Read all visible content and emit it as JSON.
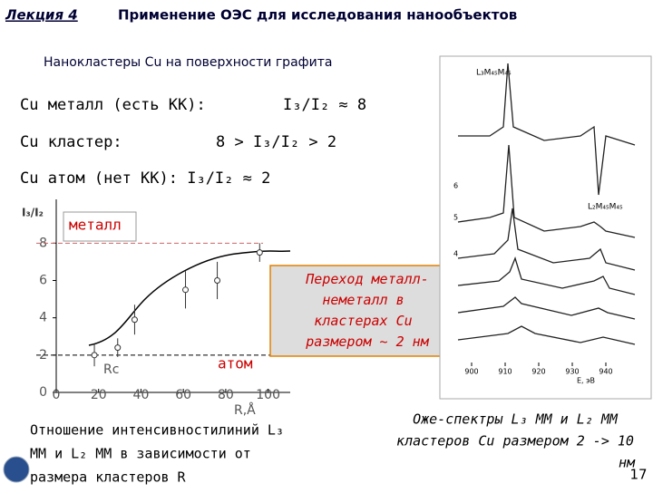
{
  "header": {
    "lecture": "Лекция 4",
    "title": "Применение ОЭС для исследования нанообъектов"
  },
  "subtitle": "Нанокластеры Cu на поверхности графита",
  "rows": [
    {
      "label": "Cu металл (есть КК):",
      "value": "I₃/I₂ ≈ 8"
    },
    {
      "label": "Cu кластер:",
      "value": "8 > I₃/I₂ > 2"
    },
    {
      "label": "Cu атом (нет КК): I₃/I₂ ≈ 2"
    }
  ],
  "plot": {
    "y_label": "I₃/I₂",
    "x_label": "R,Å",
    "metal_label": "металл",
    "atom_label": "атом",
    "rc_label": "Rc",
    "xlim": [
      0,
      110
    ],
    "ylim": [
      0,
      10.3
    ],
    "xticks": [
      0,
      20,
      40,
      60,
      80,
      100
    ],
    "yticks": [
      0,
      2,
      4,
      6,
      8
    ],
    "x": [
      18,
      29,
      37,
      61,
      76,
      96
    ],
    "values": [
      2.0,
      2.4,
      3.9,
      5.5,
      6.0,
      7.5
    ],
    "errors": [
      0.6,
      0.5,
      0.8,
      1.0,
      1.0,
      0.5
    ]
  },
  "callout": "Переход металл-неметалл в кластерах Cu размером ~ 2 нм",
  "spectra": {
    "peak1": "L₃M₄₅M₄₅",
    "peak2": "L₂M₄₅M₄₅",
    "curves": [
      "6",
      "5",
      "4"
    ],
    "xticks": [
      "900",
      "910",
      "920",
      "930",
      "940"
    ],
    "x_label": "E, эВ"
  },
  "caption_left": [
    "Отношение интенсивностилиний L₃",
    "MM  и L₂ MM  в зависимости от",
    "размера кластеров R"
  ],
  "caption_right": [
    "Оже-спектры L₃ MM  и L₂ MM",
    "кластеров Cu размером 2 -> 10",
    "нм"
  ],
  "page_number": "17"
}
